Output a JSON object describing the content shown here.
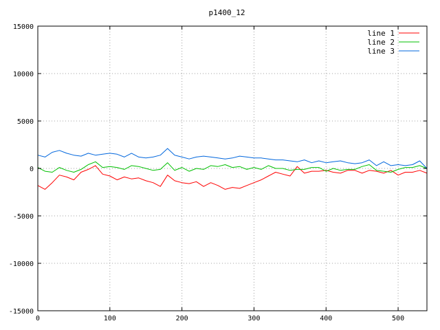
{
  "chart_data": {
    "type": "line",
    "title": "p1400_12",
    "xlabel": "",
    "ylabel": "",
    "xlim": [
      0,
      540
    ],
    "ylim": [
      -15000,
      15000
    ],
    "xticks": [
      0,
      100,
      200,
      300,
      400,
      500
    ],
    "yticks": [
      -15000,
      -10000,
      -5000,
      0,
      5000,
      10000,
      15000
    ],
    "grid": true,
    "legend_position": "top-right",
    "series": [
      {
        "name": "line 1",
        "color": "#ff0000",
        "x": [
          0,
          10,
          20,
          30,
          40,
          50,
          60,
          70,
          80,
          90,
          100,
          110,
          120,
          130,
          140,
          150,
          160,
          170,
          180,
          190,
          200,
          210,
          220,
          230,
          240,
          250,
          260,
          270,
          280,
          290,
          300,
          310,
          320,
          330,
          340,
          350,
          360,
          370,
          380,
          390,
          400,
          410,
          420,
          430,
          440,
          450,
          460,
          470,
          480,
          490,
          500,
          510,
          520,
          530,
          540
        ],
        "y": [
          -1800,
          -2200,
          -1500,
          -700,
          -900,
          -1200,
          -400,
          -100,
          300,
          -600,
          -800,
          -1200,
          -900,
          -1100,
          -1000,
          -1300,
          -1500,
          -1900,
          -700,
          -1300,
          -1500,
          -1600,
          -1400,
          -1900,
          -1500,
          -1800,
          -2200,
          -2000,
          -2100,
          -1800,
          -1500,
          -1200,
          -800,
          -400,
          -600,
          -800,
          200,
          -500,
          -300,
          -300,
          -200,
          -400,
          -500,
          -200,
          -200,
          -500,
          -200,
          -300,
          -500,
          -200,
          -700,
          -400,
          -400,
          -200,
          -500
        ]
      },
      {
        "name": "line 2",
        "color": "#00c000",
        "x": [
          0,
          10,
          20,
          30,
          40,
          50,
          60,
          70,
          80,
          90,
          100,
          110,
          120,
          130,
          140,
          150,
          160,
          170,
          180,
          190,
          200,
          210,
          220,
          230,
          240,
          250,
          260,
          270,
          280,
          290,
          300,
          310,
          320,
          330,
          340,
          350,
          360,
          370,
          380,
          390,
          400,
          410,
          420,
          430,
          440,
          450,
          460,
          470,
          480,
          490,
          500,
          510,
          520,
          530,
          540
        ],
        "y": [
          100,
          -300,
          -400,
          100,
          -200,
          -400,
          -100,
          400,
          700,
          100,
          200,
          100,
          -100,
          300,
          200,
          0,
          -200,
          -100,
          600,
          -200,
          100,
          -300,
          0,
          -100,
          300,
          200,
          400,
          100,
          200,
          -100,
          100,
          -100,
          300,
          0,
          0,
          -200,
          -100,
          -100,
          100,
          100,
          -300,
          0,
          -200,
          -100,
          -100,
          200,
          400,
          -200,
          -300,
          -400,
          -100,
          100,
          100,
          300,
          0
        ]
      },
      {
        "name": "line 3",
        "color": "#0066dd",
        "x": [
          0,
          10,
          20,
          30,
          40,
          50,
          60,
          70,
          80,
          90,
          100,
          110,
          120,
          130,
          140,
          150,
          160,
          170,
          180,
          190,
          200,
          210,
          220,
          230,
          240,
          250,
          260,
          270,
          280,
          290,
          300,
          310,
          320,
          330,
          340,
          350,
          360,
          370,
          380,
          390,
          400,
          410,
          420,
          430,
          440,
          450,
          460,
          470,
          480,
          490,
          500,
          510,
          520,
          530,
          540
        ],
        "y": [
          1400,
          1200,
          1700,
          1900,
          1600,
          1400,
          1300,
          1600,
          1400,
          1500,
          1600,
          1500,
          1200,
          1600,
          1200,
          1100,
          1200,
          1400,
          2100,
          1400,
          1200,
          1000,
          1200,
          1300,
          1200,
          1100,
          1000,
          1100,
          1300,
          1200,
          1100,
          1100,
          1000,
          900,
          900,
          800,
          700,
          900,
          600,
          800,
          600,
          700,
          800,
          600,
          500,
          600,
          900,
          300,
          700,
          300,
          400,
          300,
          400,
          800,
          0
        ]
      }
    ]
  }
}
